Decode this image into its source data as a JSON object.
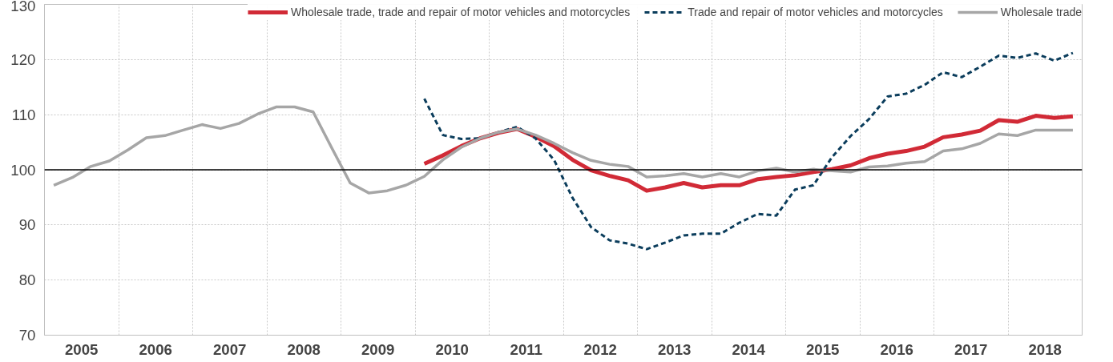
{
  "chart_data": {
    "type": "line",
    "x": [
      2005.125,
      2005.375,
      2005.625,
      2005.875,
      2006.125,
      2006.375,
      2006.625,
      2006.875,
      2007.125,
      2007.375,
      2007.625,
      2007.875,
      2008.125,
      2008.375,
      2008.625,
      2008.875,
      2009.125,
      2009.375,
      2009.625,
      2009.875,
      2010.125,
      2010.375,
      2010.625,
      2010.875,
      2011.125,
      2011.375,
      2011.625,
      2011.875,
      2012.125,
      2012.375,
      2012.625,
      2012.875,
      2013.125,
      2013.375,
      2013.625,
      2013.875,
      2014.125,
      2014.375,
      2014.625,
      2014.875,
      2015.125,
      2015.375,
      2015.625,
      2015.875,
      2016.125,
      2016.375,
      2016.625,
      2016.875,
      2017.125,
      2017.375,
      2017.625,
      2017.875,
      2018.125,
      2018.375,
      2018.625,
      2018.875
    ],
    "series": [
      {
        "name": "Wholesale trade, trade and repair of motor vehicles and motorcycles",
        "color": "#d12a36",
        "line_style": "solid",
        "values": [
          null,
          null,
          null,
          null,
          null,
          null,
          null,
          null,
          null,
          null,
          null,
          null,
          null,
          null,
          null,
          null,
          null,
          null,
          null,
          null,
          101.1,
          102.6,
          104.3,
          105.7,
          106.7,
          107.4,
          106.0,
          104.3,
          101.8,
          99.9,
          98.9,
          98.1,
          96.2,
          96.8,
          97.6,
          96.8,
          97.2,
          97.2,
          98.3,
          98.7,
          99.0,
          99.6,
          100.1,
          100.8,
          102.1,
          102.9,
          103.4,
          104.2,
          105.9,
          106.4,
          107.1,
          109.0,
          108.7,
          109.8,
          109.4,
          109.7
        ]
      },
      {
        "name": "Trade and repair of motor vehicles and motorcycles",
        "color": "#0b3d5c",
        "line_style": "dashed",
        "values": [
          null,
          null,
          null,
          null,
          null,
          null,
          null,
          null,
          null,
          null,
          null,
          null,
          null,
          null,
          null,
          null,
          null,
          null,
          null,
          null,
          112.9,
          106.3,
          105.6,
          105.7,
          106.8,
          107.8,
          105.7,
          101.8,
          94.9,
          89.6,
          87.2,
          86.6,
          85.6,
          86.8,
          88.1,
          88.4,
          88.4,
          90.4,
          92.0,
          91.7,
          96.4,
          97.2,
          102.3,
          106.1,
          109.2,
          113.3,
          113.8,
          115.4,
          117.7,
          116.8,
          118.7,
          120.7,
          120.3,
          121.1,
          119.8,
          121.2
        ]
      },
      {
        "name": "Wholesale trade",
        "color": "#a6a6a6",
        "line_style": "solid",
        "values": [
          97.2,
          98.6,
          100.6,
          101.6,
          103.6,
          105.8,
          106.2,
          107.2,
          108.2,
          107.5,
          108.4,
          110.1,
          111.4,
          111.4,
          110.5,
          104.0,
          97.6,
          95.8,
          96.2,
          97.2,
          98.8,
          101.8,
          104.1,
          105.7,
          106.8,
          107.4,
          106.3,
          104.8,
          103.1,
          101.7,
          101.0,
          100.6,
          98.7,
          98.9,
          99.3,
          98.7,
          99.3,
          98.7,
          99.8,
          100.3,
          99.6,
          100.1,
          99.8,
          99.6,
          100.5,
          100.7,
          101.2,
          101.5,
          103.4,
          103.8,
          104.8,
          106.5,
          106.2,
          107.2,
          107.2,
          107.2
        ]
      }
    ],
    "xlim": [
      2005,
      2019
    ],
    "xticks": [
      {
        "value": 2005.5,
        "label": "2005"
      },
      {
        "value": 2006,
        "label": null
      },
      {
        "value": 2006.5,
        "label": "2006"
      },
      {
        "value": 2007,
        "label": null
      },
      {
        "value": 2007.5,
        "label": "2007"
      },
      {
        "value": 2008,
        "label": null
      },
      {
        "value": 2008.5,
        "label": "2008"
      },
      {
        "value": 2009,
        "label": null
      },
      {
        "value": 2009.5,
        "label": "2009"
      },
      {
        "value": 2010,
        "label": null
      },
      {
        "value": 2010.5,
        "label": "2010"
      },
      {
        "value": 2011,
        "label": null
      },
      {
        "value": 2011.5,
        "label": "2011"
      },
      {
        "value": 2012,
        "label": null
      },
      {
        "value": 2012.5,
        "label": "2012"
      },
      {
        "value": 2013,
        "label": null
      },
      {
        "value": 2013.5,
        "label": "2013"
      },
      {
        "value": 2014,
        "label": null
      },
      {
        "value": 2014.5,
        "label": "2014"
      },
      {
        "value": 2015,
        "label": null
      },
      {
        "value": 2015.5,
        "label": "2015"
      },
      {
        "value": 2016,
        "label": null
      },
      {
        "value": 2016.5,
        "label": "2016"
      },
      {
        "value": 2017,
        "label": null
      },
      {
        "value": 2017.5,
        "label": "2017"
      },
      {
        "value": 2018,
        "label": null
      },
      {
        "value": 2018.5,
        "label": "2018"
      }
    ],
    "ylim": [
      70,
      130
    ],
    "yticks": [
      70,
      80,
      90,
      100,
      110,
      120,
      130
    ],
    "grid": true,
    "legend": "top",
    "ref_lines": [
      {
        "axis": "y",
        "value": 100,
        "color": "#000000"
      }
    ]
  }
}
